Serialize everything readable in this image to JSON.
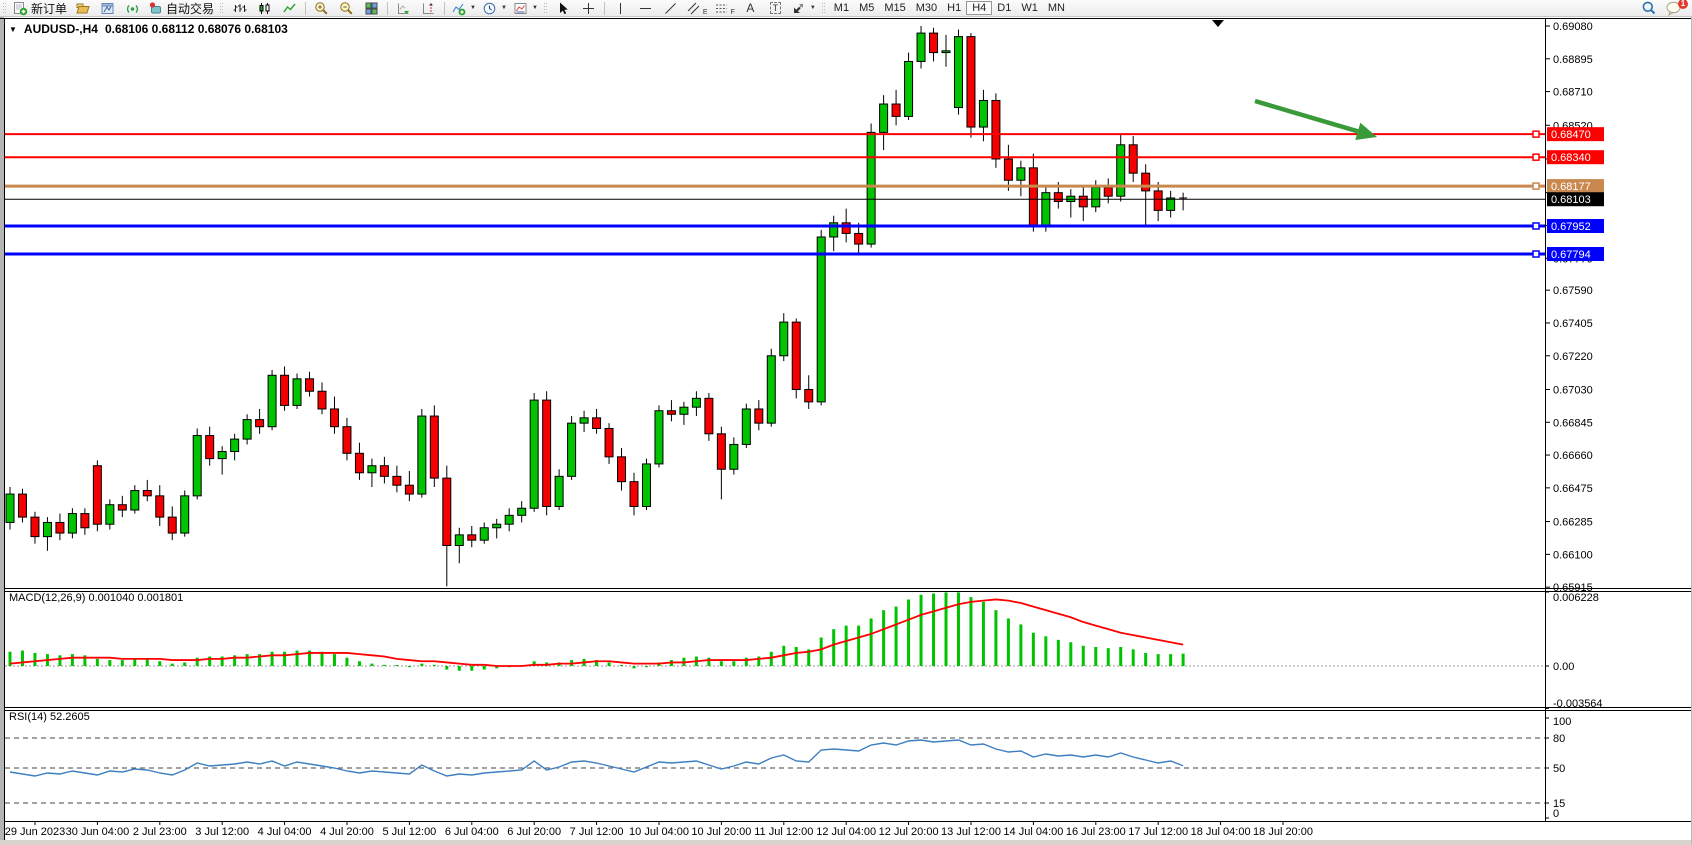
{
  "toolbar": {
    "new_order": "新订单",
    "autotrading": "自动交易",
    "timeframes": [
      "M1",
      "M5",
      "M15",
      "M30",
      "H1",
      "H4",
      "D1",
      "W1",
      "MN"
    ],
    "active_timeframe": "H4",
    "notification_badge": "1"
  },
  "chart": {
    "symbol_period": "AUDUSD-,H4",
    "ohlc_line": "0.68106 0.68112 0.68076 0.68103"
  },
  "chart_data": {
    "type": "candlestick",
    "symbol": "AUDUSD-",
    "timeframe": "H4",
    "ohlc_current": {
      "open": 0.68106,
      "high": 0.68112,
      "low": 0.68076,
      "close": 0.68103
    },
    "colors": {
      "bull": "#00c400",
      "bear": "#f40000",
      "wick": "#000000",
      "axis_text": "#000000"
    },
    "price_axis_ticks": [
      0.6908,
      0.68895,
      0.6871,
      0.6852,
      0.6833,
      0.6814,
      0.67955,
      0.6777,
      0.6759,
      0.67405,
      0.6722,
      0.6703,
      0.66845,
      0.6666,
      0.66475,
      0.66285,
      0.661,
      0.65915
    ],
    "hlines": [
      {
        "price": 0.6847,
        "label": "0.68470",
        "color": "#ff0000",
        "width": 2
      },
      {
        "price": 0.6834,
        "label": "0.68340",
        "color": "#ff0000",
        "width": 2
      },
      {
        "price": 0.68177,
        "label": "0.68177",
        "color": "#c9884e",
        "width": 3
      },
      {
        "price": 0.68103,
        "label": "0.68103",
        "color": "#000000",
        "width": 1
      },
      {
        "price": 0.67952,
        "label": "0.67952",
        "color": "#0000ff",
        "width": 3
      },
      {
        "price": 0.67794,
        "label": "0.67794",
        "color": "#0000ff",
        "width": 3
      }
    ],
    "candles": [
      [
        0.6628,
        0.6648,
        0.6624,
        0.6644
      ],
      [
        0.6644,
        0.6647,
        0.6628,
        0.6631
      ],
      [
        0.6631,
        0.6634,
        0.6616,
        0.662
      ],
      [
        0.662,
        0.6631,
        0.6612,
        0.6628
      ],
      [
        0.6628,
        0.6633,
        0.6618,
        0.6622
      ],
      [
        0.6622,
        0.6636,
        0.6619,
        0.6633
      ],
      [
        0.6633,
        0.6636,
        0.6621,
        0.6625
      ],
      [
        0.666,
        0.6663,
        0.6623,
        0.6627
      ],
      [
        0.6627,
        0.6641,
        0.6624,
        0.6638
      ],
      [
        0.6638,
        0.6643,
        0.6631,
        0.6635
      ],
      [
        0.6635,
        0.6649,
        0.6633,
        0.6646
      ],
      [
        0.6646,
        0.6652,
        0.664,
        0.6643
      ],
      [
        0.6643,
        0.6649,
        0.6626,
        0.6631
      ],
      [
        0.6631,
        0.6637,
        0.6618,
        0.6622
      ],
      [
        0.6622,
        0.6646,
        0.662,
        0.6643
      ],
      [
        0.6643,
        0.6681,
        0.6641,
        0.6677
      ],
      [
        0.6677,
        0.6682,
        0.666,
        0.6664
      ],
      [
        0.6664,
        0.6671,
        0.6655,
        0.6668
      ],
      [
        0.6668,
        0.6678,
        0.6663,
        0.6675
      ],
      [
        0.6675,
        0.6689,
        0.6672,
        0.6686
      ],
      [
        0.6686,
        0.6692,
        0.6678,
        0.6682
      ],
      [
        0.6682,
        0.6714,
        0.668,
        0.6711
      ],
      [
        0.6711,
        0.6716,
        0.6691,
        0.6694
      ],
      [
        0.6694,
        0.6712,
        0.6692,
        0.6709
      ],
      [
        0.6709,
        0.6713,
        0.6699,
        0.6702
      ],
      [
        0.6702,
        0.6707,
        0.6689,
        0.6692
      ],
      [
        0.6692,
        0.6699,
        0.6678,
        0.6682
      ],
      [
        0.6682,
        0.6687,
        0.6663,
        0.6667
      ],
      [
        0.6667,
        0.6673,
        0.6652,
        0.6656
      ],
      [
        0.6656,
        0.6664,
        0.6648,
        0.666
      ],
      [
        0.666,
        0.6665,
        0.665,
        0.6654
      ],
      [
        0.6654,
        0.666,
        0.6645,
        0.6649
      ],
      [
        0.6649,
        0.6657,
        0.664,
        0.6644
      ],
      [
        0.6644,
        0.6692,
        0.6642,
        0.6688
      ],
      [
        0.6688,
        0.6694,
        0.6648,
        0.6653
      ],
      [
        0.6653,
        0.666,
        0.6592,
        0.6615
      ],
      [
        0.6615,
        0.6625,
        0.6605,
        0.6621
      ],
      [
        0.6621,
        0.6626,
        0.6614,
        0.6618
      ],
      [
        0.6618,
        0.6628,
        0.6616,
        0.6625
      ],
      [
        0.6625,
        0.663,
        0.6619,
        0.6627
      ],
      [
        0.6627,
        0.6636,
        0.6623,
        0.6632
      ],
      [
        0.6632,
        0.664,
        0.6628,
        0.6636
      ],
      [
        0.6636,
        0.6701,
        0.6634,
        0.6697
      ],
      [
        0.6697,
        0.6702,
        0.6632,
        0.6637
      ],
      [
        0.6637,
        0.6658,
        0.6635,
        0.6654
      ],
      [
        0.6654,
        0.6688,
        0.6652,
        0.6684
      ],
      [
        0.6684,
        0.6691,
        0.6679,
        0.6687
      ],
      [
        0.6687,
        0.6692,
        0.6678,
        0.6681
      ],
      [
        0.6681,
        0.6684,
        0.6661,
        0.6665
      ],
      [
        0.6665,
        0.667,
        0.6646,
        0.6651
      ],
      [
        0.6651,
        0.6656,
        0.6632,
        0.6637
      ],
      [
        0.6637,
        0.6664,
        0.6635,
        0.6661
      ],
      [
        0.6661,
        0.6694,
        0.6659,
        0.6691
      ],
      [
        0.6691,
        0.6697,
        0.6685,
        0.6689
      ],
      [
        0.6689,
        0.6696,
        0.6683,
        0.6693
      ],
      [
        0.6693,
        0.6702,
        0.6688,
        0.6698
      ],
      [
        0.6698,
        0.6701,
        0.6674,
        0.6678
      ],
      [
        0.6678,
        0.6682,
        0.6641,
        0.6658
      ],
      [
        0.6658,
        0.6676,
        0.6655,
        0.6672
      ],
      [
        0.6672,
        0.6695,
        0.667,
        0.6692
      ],
      [
        0.6692,
        0.6697,
        0.668,
        0.6684
      ],
      [
        0.6684,
        0.6726,
        0.6682,
        0.6722
      ],
      [
        0.6722,
        0.6746,
        0.6719,
        0.6741
      ],
      [
        0.6741,
        0.6743,
        0.6698,
        0.6703
      ],
      [
        0.6703,
        0.6711,
        0.6692,
        0.6696
      ],
      [
        0.6696,
        0.6793,
        0.6694,
        0.6789
      ],
      [
        0.6789,
        0.6801,
        0.6781,
        0.6797
      ],
      [
        0.6797,
        0.6805,
        0.6786,
        0.6791
      ],
      [
        0.6791,
        0.6797,
        0.678,
        0.6785
      ],
      [
        0.6785,
        0.6853,
        0.6783,
        0.6848
      ],
      [
        0.6848,
        0.6869,
        0.6838,
        0.6864
      ],
      [
        0.6864,
        0.6872,
        0.6852,
        0.6857
      ],
      [
        0.6857,
        0.6893,
        0.6855,
        0.6888
      ],
      [
        0.6888,
        0.6908,
        0.6884,
        0.6904
      ],
      [
        0.6904,
        0.6907,
        0.6888,
        0.6893
      ],
      [
        0.6893,
        0.6903,
        0.6885,
        0.6894
      ],
      [
        0.6862,
        0.6906,
        0.6858,
        0.6902
      ],
      [
        0.6902,
        0.6904,
        0.6845,
        0.6851
      ],
      [
        0.6851,
        0.6872,
        0.6843,
        0.6866
      ],
      [
        0.6866,
        0.687,
        0.6828,
        0.6833
      ],
      [
        0.6833,
        0.6841,
        0.6815,
        0.6821
      ],
      [
        0.6821,
        0.6832,
        0.6812,
        0.6828
      ],
      [
        0.6828,
        0.6836,
        0.6792,
        0.6795
      ],
      [
        0.6795,
        0.6818,
        0.6792,
        0.6814
      ],
      [
        0.6814,
        0.682,
        0.6805,
        0.6809
      ],
      [
        0.6809,
        0.6816,
        0.68,
        0.6812
      ],
      [
        0.6812,
        0.6818,
        0.6798,
        0.6806
      ],
      [
        0.6806,
        0.6821,
        0.6803,
        0.6817
      ],
      [
        0.6817,
        0.6822,
        0.6808,
        0.6812
      ],
      [
        0.6812,
        0.6847,
        0.6809,
        0.6841
      ],
      [
        0.6841,
        0.6846,
        0.682,
        0.6825
      ],
      [
        0.6825,
        0.683,
        0.6796,
        0.6815
      ],
      [
        0.6815,
        0.682,
        0.6798,
        0.6804
      ],
      [
        0.6804,
        0.6815,
        0.68,
        0.6811
      ],
      [
        0.6811,
        0.6814,
        0.6804,
        0.68103
      ]
    ],
    "time_labels": [
      "29 Jun 2023",
      "30 Jun 04:00",
      "2 Jul 23:00",
      "3 Jul 12:00",
      "4 Jul 04:00",
      "4 Jul 20:00",
      "5 Jul 12:00",
      "6 Jul 04:00",
      "6 Jul 20:00",
      "7 Jul 12:00",
      "10 Jul 04:00",
      "10 Jul 20:00",
      "11 Jul 12:00",
      "12 Jul 04:00",
      "12 Jul 20:00",
      "13 Jul 12:00",
      "14 Jul 04:00",
      "16 Jul 23:00",
      "17 Jul 12:00",
      "18 Jul 04:00",
      "18 Jul 20:00"
    ],
    "macd": {
      "label": "MACD(12,26,9) 0.001040 0.001801",
      "axis_ticks": [
        {
          "v": 0.006228,
          "label": "0.006228"
        },
        {
          "v": 0,
          "label": "0.00"
        },
        {
          "v": -0.003564,
          "label": "-0.003564"
        }
      ],
      "colors": {
        "histogram": "#00c400",
        "signal": "#ff0000"
      },
      "histogram": [
        0.0012,
        0.0013,
        0.0011,
        0.001,
        0.0009,
        0.001,
        0.0009,
        0.0006,
        0.0005,
        0.0005,
        0.0006,
        0.0006,
        0.0004,
        0.0002,
        0.0003,
        0.0007,
        0.0008,
        0.0008,
        0.0009,
        0.001,
        0.001,
        0.0012,
        0.0012,
        0.0013,
        0.0013,
        0.0012,
        0.001,
        0.0007,
        0.0004,
        0.0002,
        0.0001,
        0.0,
        -0.0001,
        0.0002,
        0.0001,
        -0.0003,
        -0.0004,
        -0.0004,
        -0.0003,
        -0.0002,
        -0.0001,
        0.0,
        0.0004,
        0.0003,
        0.0003,
        0.0005,
        0.0006,
        0.0005,
        0.0003,
        0.0,
        -0.0002,
        -0.0001,
        0.0003,
        0.0005,
        0.0007,
        0.0008,
        0.0007,
        0.0004,
        0.0004,
        0.0007,
        0.0008,
        0.0012,
        0.0017,
        0.0016,
        0.0014,
        0.0024,
        0.0031,
        0.0034,
        0.0034,
        0.004,
        0.0047,
        0.005,
        0.0056,
        0.006,
        0.0061,
        0.0062,
        0.0062,
        0.0058,
        0.0054,
        0.0047,
        0.004,
        0.0035,
        0.0028,
        0.0025,
        0.0022,
        0.002,
        0.0017,
        0.0016,
        0.0015,
        0.0016,
        0.0014,
        0.0011,
        0.001,
        0.001,
        0.00104
      ],
      "signal": [
        0.0002,
        0.0003,
        0.0004,
        0.0005,
        0.0006,
        0.0007,
        0.0007,
        0.0007,
        0.0007,
        0.0006,
        0.0006,
        0.0006,
        0.0006,
        0.0005,
        0.0005,
        0.0005,
        0.0006,
        0.0006,
        0.0007,
        0.0007,
        0.0008,
        0.0009,
        0.0009,
        0.001,
        0.0011,
        0.0011,
        0.0011,
        0.0011,
        0.001,
        0.0009,
        0.0008,
        0.0006,
        0.0005,
        0.0004,
        0.0004,
        0.0003,
        0.0002,
        0.0001,
        0.0001,
        0.0,
        0.0,
        0.0,
        0.0001,
        0.0001,
        0.0002,
        0.0002,
        0.0003,
        0.0004,
        0.0004,
        0.0003,
        0.0002,
        0.0002,
        0.0002,
        0.0003,
        0.0003,
        0.0004,
        0.0005,
        0.0005,
        0.0005,
        0.0005,
        0.0006,
        0.0007,
        0.0009,
        0.0011,
        0.0012,
        0.0014,
        0.0018,
        0.0021,
        0.0024,
        0.0027,
        0.0031,
        0.0035,
        0.0039,
        0.0043,
        0.0046,
        0.0049,
        0.0052,
        0.0054,
        0.0055,
        0.0056,
        0.0055,
        0.0053,
        0.005,
        0.0047,
        0.0044,
        0.0041,
        0.0037,
        0.0034,
        0.0031,
        0.0028,
        0.0026,
        0.0024,
        0.0022,
        0.002,
        0.0018
      ]
    },
    "rsi": {
      "label": "RSI(14) 52.2605",
      "color": "#3e7fc1",
      "levels": [
        80,
        50,
        15
      ],
      "axis_ticks": [
        100,
        80,
        50,
        15,
        0
      ],
      "series": [
        46,
        44,
        42,
        45,
        44,
        47,
        45,
        43,
        47,
        46,
        49,
        48,
        45,
        43,
        48,
        55,
        52,
        53,
        54,
        56,
        54,
        57,
        52,
        56,
        54,
        52,
        50,
        47,
        45,
        47,
        46,
        45,
        44,
        53,
        47,
        42,
        44,
        43,
        45,
        46,
        47,
        48,
        57,
        48,
        51,
        56,
        57,
        55,
        52,
        49,
        46,
        51,
        56,
        55,
        56,
        57,
        53,
        49,
        52,
        56,
        54,
        60,
        63,
        57,
        56,
        68,
        69,
        68,
        67,
        73,
        75,
        73,
        77,
        78,
        76,
        77,
        78,
        73,
        74,
        69,
        66,
        67,
        61,
        64,
        62,
        63,
        61,
        63,
        61,
        65,
        61,
        58,
        55,
        57,
        52.26
      ]
    },
    "annotations": {
      "arrow": {
        "from": [
          1255,
          101
        ],
        "to": [
          1377,
          137
        ],
        "color": "#3a9a3a"
      }
    }
  }
}
